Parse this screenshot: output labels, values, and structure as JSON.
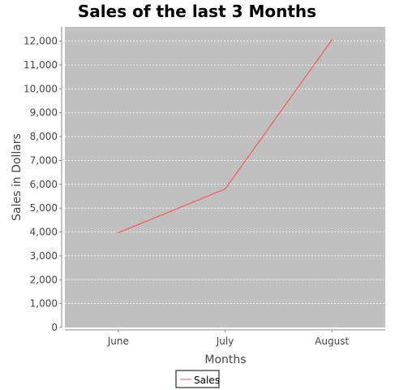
{
  "chart_data": {
    "type": "line",
    "title": "Sales of the last 3 Months",
    "xlabel": "Months",
    "ylabel": "Sales in Dollars",
    "categories": [
      "June",
      "July",
      "August"
    ],
    "series": [
      {
        "name": "Sales",
        "values": [
          3970,
          5800,
          12050
        ],
        "color": "#ff5555"
      }
    ],
    "ylim": [
      0,
      12600
    ],
    "yticks": [
      0,
      1000,
      2000,
      3000,
      4000,
      5000,
      6000,
      7000,
      8000,
      9000,
      10000,
      11000,
      12000
    ],
    "ytick_labels": [
      "0",
      "1,000",
      "2,000",
      "3,000",
      "4,000",
      "5,000",
      "6,000",
      "7,000",
      "8,000",
      "9,000",
      "10,000",
      "11,000",
      "12,000"
    ],
    "grid": true,
    "legend_position": "bottom",
    "plot_background": "#c0c0c0",
    "grid_color": "#ffffff"
  }
}
